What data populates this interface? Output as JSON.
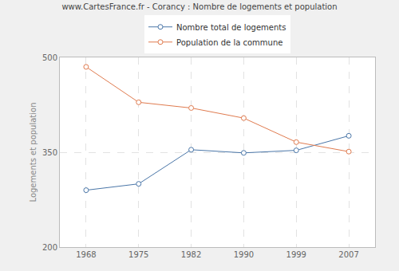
{
  "chart_data": {
    "type": "line",
    "title": "www.CartesFrance.fr - Corancy : Nombre de logements et population",
    "y_label": "Logements et population",
    "categories": [
      "1968",
      "1975",
      "1982",
      "1990",
      "1999",
      "2007"
    ],
    "series": [
      {
        "name": "Nombre total de logements",
        "color": "#4a76a8",
        "values": [
          290,
          300,
          354,
          349,
          353,
          376
        ]
      },
      {
        "name": "Population de la commune",
        "color": "#e07b4f",
        "values": [
          485,
          429,
          420,
          404,
          366,
          351
        ]
      }
    ],
    "ylim": [
      200,
      500
    ],
    "yticks": [
      200,
      350,
      500
    ],
    "grid": true,
    "legend": "top",
    "marker": "circle"
  }
}
